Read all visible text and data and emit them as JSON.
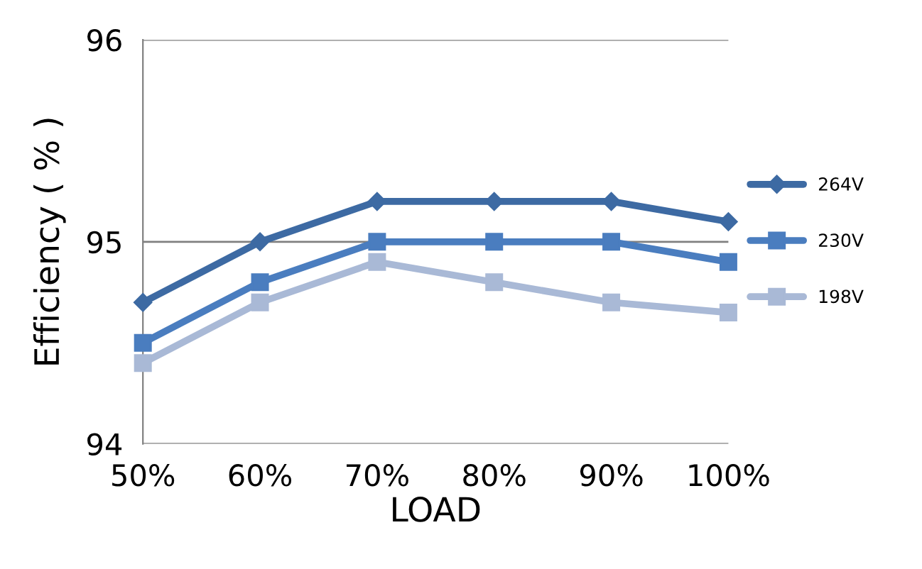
{
  "chart_data": {
    "type": "line",
    "xlabel": "LOAD",
    "ylabel": "Efficiency ( % )",
    "categories": [
      "50%",
      "60%",
      "70%",
      "80%",
      "90%",
      "100%"
    ],
    "series": [
      {
        "name": "264V",
        "color": "#3d6aa3",
        "marker": "diamond",
        "values": [
          94.7,
          95.0,
          95.2,
          95.2,
          95.2,
          95.1
        ]
      },
      {
        "name": "230V",
        "color": "#4a7dbf",
        "marker": "square",
        "values": [
          94.5,
          94.8,
          95.0,
          95.0,
          95.0,
          94.9
        ]
      },
      {
        "name": "198V",
        "color": "#a9b9d6",
        "marker": "square",
        "values": [
          94.4,
          94.7,
          94.9,
          94.8,
          94.7,
          94.65
        ]
      }
    ],
    "ylim": [
      94,
      96
    ],
    "yticks": [
      94,
      95,
      96
    ],
    "grid": "y",
    "legend": "right"
  }
}
